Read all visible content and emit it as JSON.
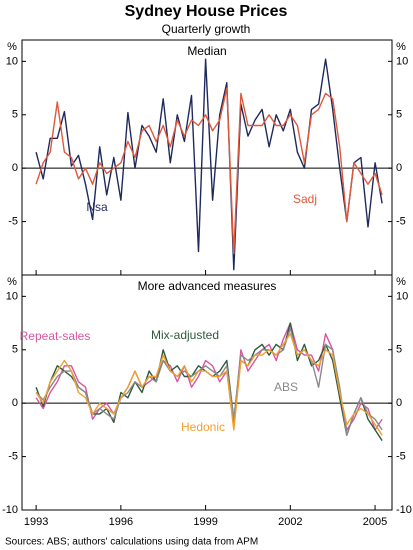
{
  "title": "Sydney House Prices",
  "subtitle": "Quarterly growth",
  "source": "Sources: ABS; authors' calculations using data from APM",
  "chart_data": [
    {
      "type": "line",
      "title": "Median",
      "unit": "%",
      "x": [
        1993,
        1993.25,
        1993.5,
        1993.75,
        1994,
        1994.25,
        1994.5,
        1994.75,
        1995,
        1995.25,
        1995.5,
        1995.75,
        1996,
        1996.25,
        1996.5,
        1996.75,
        1997,
        1997.25,
        1997.5,
        1997.75,
        1998,
        1998.25,
        1998.5,
        1998.75,
        1999,
        1999.25,
        1999.5,
        1999.75,
        2000,
        2000.25,
        2000.5,
        2000.75,
        2001,
        2001.25,
        2001.5,
        2001.75,
        2002,
        2002.25,
        2002.5,
        2002.75,
        2003,
        2003.25,
        2003.5,
        2003.75,
        2004,
        2004.25,
        2004.5,
        2004.75,
        2005,
        2005.25
      ],
      "series": [
        {
          "name": "Nsa",
          "color": "#1f2a5c",
          "values": [
            1.5,
            -1.0,
            2.8,
            2.8,
            5.3,
            0.2,
            1.2,
            -1.5,
            -4.8,
            2.0,
            -2.5,
            1.0,
            -3.0,
            5.2,
            0.0,
            4.0,
            3.0,
            1.5,
            6.5,
            0.5,
            5.0,
            2.5,
            6.8,
            -7.8,
            10.2,
            -3.0,
            5.0,
            8.0,
            -9.5,
            6.0,
            3.0,
            4.5,
            5.5,
            2.0,
            5.0,
            3.5,
            5.5,
            1.5,
            0.0,
            5.5,
            6.0,
            10.2,
            5.5,
            0.0,
            -5.0,
            0.5,
            1.0,
            -5.5,
            0.5,
            -3.3
          ]
        },
        {
          "name": "Sadj",
          "color": "#e0583a",
          "values": [
            -1.5,
            0.5,
            1.5,
            6.2,
            1.5,
            1.0,
            -1.0,
            0,
            -1.5,
            0.5,
            -0.5,
            0,
            0.5,
            2.5,
            1.0,
            3.5,
            4.0,
            2.5,
            4.0,
            2.0,
            4.5,
            3.0,
            4.5,
            4.0,
            5.0,
            3.5,
            4.5,
            7.5,
            -8.0,
            7.0,
            4.0,
            4.0,
            4.0,
            5.0,
            4.0,
            4.0,
            5.0,
            4.0,
            0.5,
            5.0,
            5.5,
            7.0,
            6.5,
            2.0,
            -5.0,
            0.5,
            -0.5,
            -1.5,
            -0.5,
            -2.5
          ]
        }
      ],
      "xlim": [
        1992.5,
        2005.6
      ],
      "xticks": [
        1993,
        1996,
        1999,
        2002,
        2005
      ],
      "ylim": [
        -10,
        12
      ],
      "yticks": [
        -5,
        0,
        5,
        10
      ]
    },
    {
      "type": "line",
      "title": "More advanced measures",
      "unit": "%",
      "x": [
        1993,
        1993.25,
        1993.5,
        1993.75,
        1994,
        1994.25,
        1994.5,
        1994.75,
        1995,
        1995.25,
        1995.5,
        1995.75,
        1996,
        1996.25,
        1996.5,
        1996.75,
        1997,
        1997.25,
        1997.5,
        1997.75,
        1998,
        1998.25,
        1998.5,
        1998.75,
        1999,
        1999.25,
        1999.5,
        1999.75,
        2000,
        2000.25,
        2000.5,
        2000.75,
        2001,
        2001.25,
        2001.5,
        2001.75,
        2002,
        2002.25,
        2002.5,
        2002.75,
        2003,
        2003.25,
        2003.5,
        2003.75,
        2004,
        2004.25,
        2004.5,
        2004.75,
        2005,
        2005.25
      ],
      "series": [
        {
          "name": "Repeat-sales",
          "color": "#d9559f",
          "values": [
            0.5,
            -0.5,
            1.0,
            2.0,
            3.5,
            3.5,
            2.0,
            1.5,
            -1.5,
            -0.5,
            0.0,
            -1.0,
            0.5,
            1.5,
            3.0,
            1.5,
            2.0,
            2.5,
            4.0,
            3.5,
            2.0,
            3.5,
            1.5,
            2.5,
            4.0,
            3.5,
            2.0,
            3.0,
            -2.0,
            5.0,
            3.0,
            4.0,
            5.0,
            5.5,
            4.0,
            6.0,
            7.5,
            5.0,
            4.5,
            4.5,
            3.0,
            6.5,
            5.0,
            0.5,
            -2.5,
            -1.5,
            0.0,
            -0.5,
            -2.5,
            -1.5
          ]
        },
        {
          "name": "Mix-adjusted",
          "color": "#2e5a3c",
          "values": [
            1.5,
            -0.3,
            2.0,
            3.5,
            3.0,
            2.5,
            1.5,
            1.0,
            -1.0,
            -1.0,
            -0.5,
            -1.8,
            1.0,
            0.5,
            2.0,
            1.0,
            3.0,
            2.0,
            5.0,
            3.0,
            3.5,
            2.5,
            2.5,
            3.5,
            3.0,
            2.5,
            3.0,
            4.0,
            -1.5,
            4.0,
            3.5,
            5.0,
            5.5,
            4.5,
            5.5,
            5.0,
            7.5,
            4.0,
            5.5,
            3.5,
            4.0,
            5.5,
            4.0,
            0.5,
            -3.0,
            -1.0,
            0.5,
            -1.5,
            -2.5,
            -3.5
          ]
        },
        {
          "name": "ABS",
          "color": "#8a8a8a",
          "values": [
            1.0,
            0.3,
            1.5,
            2.5,
            3.0,
            3.0,
            1.5,
            1.0,
            -1.0,
            -0.5,
            -1.0,
            -1.5,
            0.5,
            1.0,
            2.0,
            1.5,
            2.5,
            2.0,
            4.0,
            3.0,
            2.5,
            3.0,
            2.5,
            3.0,
            3.5,
            3.0,
            2.5,
            3.5,
            -1.5,
            4.5,
            4.0,
            4.5,
            5.0,
            5.0,
            4.5,
            5.0,
            7.0,
            4.5,
            5.0,
            4.0,
            1.5,
            5.5,
            5.0,
            1.5,
            -3.0,
            -1.0,
            0.5,
            -1.0,
            -1.5,
            -2.5
          ]
        },
        {
          "name": "Hedonic",
          "color": "#f0a030",
          "values": [
            1.0,
            0.0,
            2.0,
            3.0,
            4.0,
            3.0,
            1.0,
            0.5,
            -1.0,
            0.0,
            -0.5,
            -1.0,
            0.5,
            1.5,
            3.0,
            1.5,
            2.5,
            2.5,
            4.5,
            3.0,
            2.5,
            3.5,
            2.0,
            3.0,
            3.0,
            2.5,
            2.5,
            3.0,
            -2.5,
            4.0,
            3.5,
            4.5,
            4.5,
            5.0,
            4.5,
            5.5,
            6.5,
            4.5,
            5.0,
            4.0,
            3.5,
            5.0,
            4.5,
            1.0,
            -2.0,
            -1.0,
            -0.5,
            -1.0,
            -2.0,
            -3.0
          ]
        }
      ],
      "xlim": [
        1992.5,
        2005.6
      ],
      "xticks": [
        1993,
        1996,
        1999,
        2002,
        2005
      ],
      "ylim": [
        -10,
        12
      ],
      "yticks": [
        -10,
        -5,
        0,
        5,
        10
      ]
    }
  ]
}
